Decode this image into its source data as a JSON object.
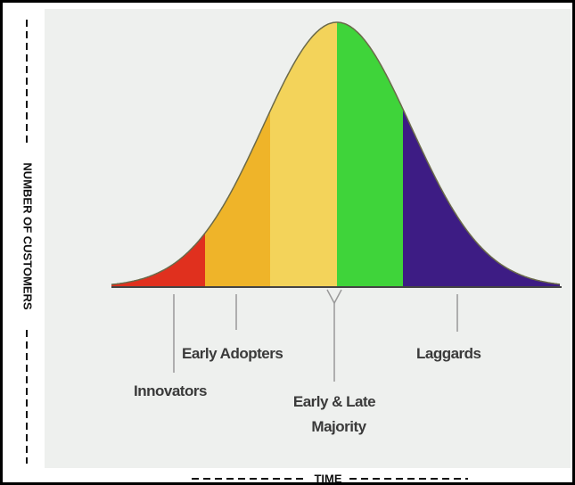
{
  "axes": {
    "y_label": "NUMBER OF CUSTOMERS",
    "x_label": "TIME"
  },
  "segments": [
    {
      "label": "Innovators"
    },
    {
      "label": "Early Adopters"
    },
    {
      "label_lines": [
        "Early & Late",
        "Majority"
      ]
    },
    {
      "label": "Laggards"
    }
  ]
}
